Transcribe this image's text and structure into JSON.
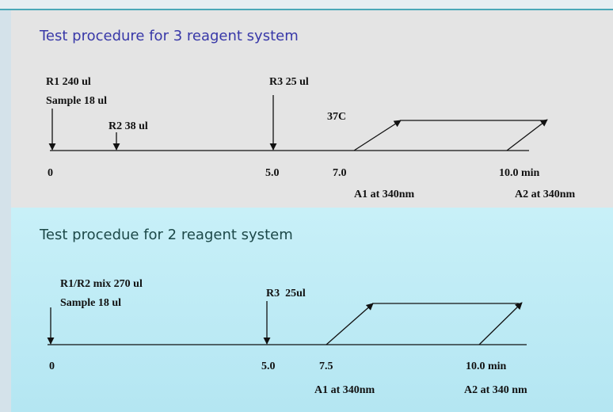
{
  "sections": [
    {
      "title": "Test procedure for 3 reagent system",
      "labels": [
        "R1 240 ul",
        "Sample 18 ul",
        "R2 38 ul",
        "R3 25 ul",
        "37C"
      ],
      "ticks": [
        "0",
        "5.0",
        "7.0",
        "10.0 min"
      ],
      "readings": [
        "A1 at 340nm",
        "A2 at 340nm"
      ]
    },
    {
      "title": "Test procedue for 2 reagent system",
      "labels": [
        "R1/R2 mix 270 ul",
        "Sample 18 ul",
        "R3  25ul"
      ],
      "ticks": [
        "0",
        "5.0",
        "7.5",
        "10.0 min"
      ],
      "readings": [
        "A1 at 340nm",
        "A2 at 340 nm"
      ]
    }
  ]
}
